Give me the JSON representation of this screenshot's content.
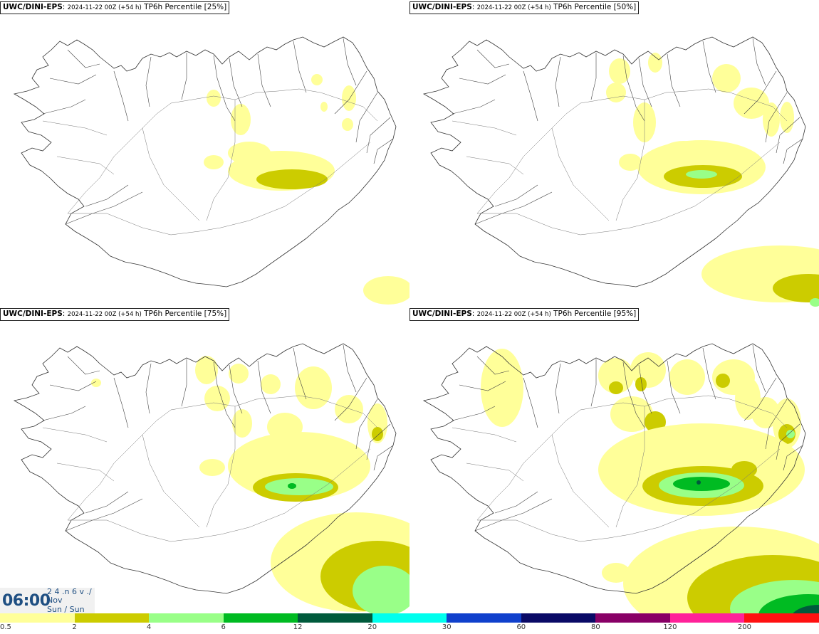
{
  "panels": [
    {
      "model": "UWC/DINI-EPS",
      "run": "2024-11-22 00Z (+54 h)",
      "field": "TP6h Percentile [25%]",
      "percentile": 25
    },
    {
      "model": "UWC/DINI-EPS",
      "run": "2024-11-22 00Z (+54 h)",
      "field": "TP6h Percentile [50%]",
      "percentile": 50
    },
    {
      "model": "UWC/DINI-EPS",
      "run": "2024-11-22 00Z (+54 h)",
      "field": "TP6h Percentile [75%]",
      "percentile": 75
    },
    {
      "model": "UWC/DINI-EPS",
      "run": "2024-11-22 00Z (+54 h)",
      "field": "TP6h Percentile [95%]",
      "percentile": 95
    }
  ],
  "time_box": {
    "time": "06:00",
    "line1": "2 4 .n 6 v ./",
    "line2": "Nov",
    "line3": "Sun / Sun"
  },
  "legend": {
    "labels": [
      "0.5",
      "2",
      "4",
      "6",
      "12",
      "20",
      "30",
      "60",
      "80",
      "120",
      "200"
    ],
    "colors": [
      "#ffff99",
      "#cccc00",
      "#99ff88",
      "#00bb22",
      "#005a3c",
      "#00ffee",
      "#1040cc",
      "#0a0a66",
      "#880066",
      "#ff2299",
      "#ff1111"
    ]
  }
}
